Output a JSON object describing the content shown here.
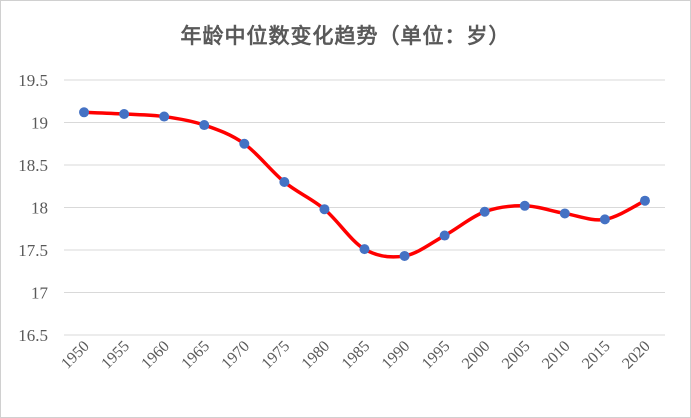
{
  "chart_data": {
    "type": "line",
    "title": "年龄中位数变化趋势（单位：岁）",
    "xlabel": "",
    "ylabel": "",
    "categories": [
      "1950",
      "1955",
      "1960",
      "1965",
      "1970",
      "1975",
      "1980",
      "1985",
      "1990",
      "1995",
      "2000",
      "2005",
      "2010",
      "2015",
      "2020"
    ],
    "series": [
      {
        "values": [
          19.12,
          19.1,
          19.07,
          18.97,
          18.75,
          18.3,
          17.98,
          17.51,
          17.43,
          17.67,
          17.95,
          18.02,
          17.93,
          17.86,
          18.08
        ]
      }
    ],
    "ylim": [
      16.5,
      19.5
    ],
    "yticks": [
      "16.5",
      "17",
      "17.5",
      "18",
      "18.5",
      "19",
      "19.5"
    ],
    "grid": true,
    "legend": "none",
    "line_color": "#ff0000",
    "marker_color": "#4472c4",
    "grid_color": "#d9d9d9",
    "smooth": true
  }
}
